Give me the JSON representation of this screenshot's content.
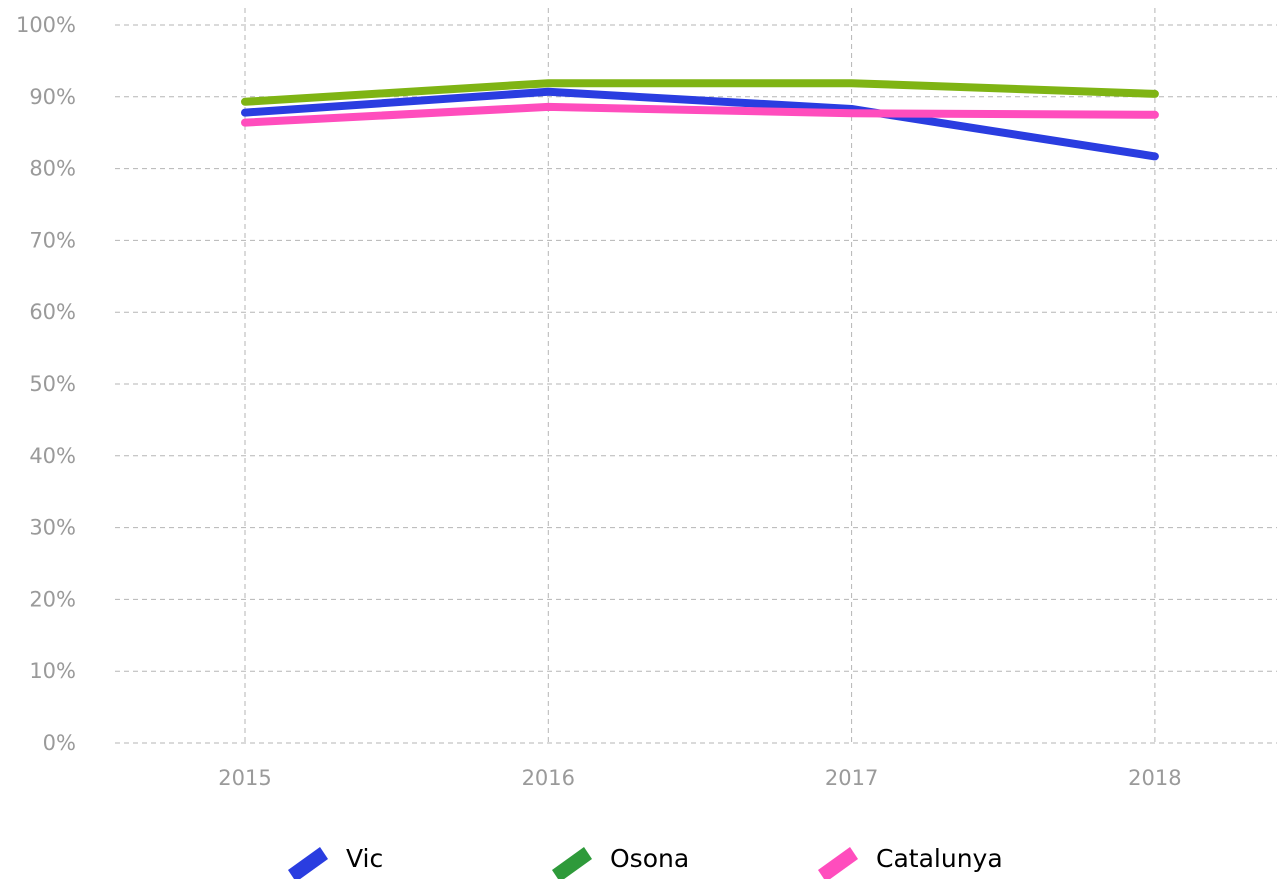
{
  "chart_data": {
    "type": "line",
    "x": [
      "2015",
      "2016",
      "2017",
      "2018"
    ],
    "y_ticks": [
      "0%",
      "10%",
      "20%",
      "30%",
      "40%",
      "50%",
      "60%",
      "70%",
      "80%",
      "90%",
      "100%"
    ],
    "ylim": [
      0,
      100
    ],
    "grid": true,
    "legend_position": "bottom",
    "series": [
      {
        "name": "Vic",
        "color": "#2a3de0",
        "legend_color": "#2a3de0",
        "values": [
          87.8,
          90.7,
          88.3,
          81.7
        ]
      },
      {
        "name": "Osona",
        "color": "#7fb414",
        "legend_color": "#2e9a3a",
        "values": [
          89.3,
          91.9,
          91.9,
          90.4
        ]
      },
      {
        "name": "Catalunya",
        "color": "#ff4dbd",
        "legend_color": "#ff4dbd",
        "values": [
          86.4,
          88.6,
          87.7,
          87.5
        ]
      }
    ]
  }
}
